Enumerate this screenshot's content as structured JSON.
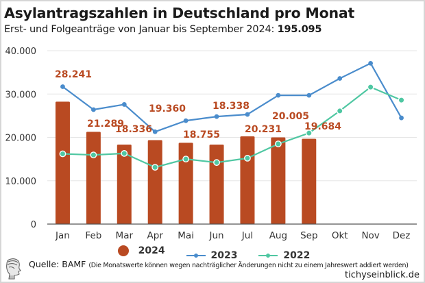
{
  "header": {
    "title": "Asylantragszahlen in Deutschland pro Monat",
    "subtitle_prefix": "Erst- und Folgeanträge von Januar bis September 2024: ",
    "subtitle_total": "195.095"
  },
  "colors": {
    "bars_2024": "#b94a22",
    "line_2023": "#4a8ccc",
    "line_2022": "#4fc7a2",
    "grid": "#e6e6e6",
    "axis": "#555555"
  },
  "chart_data": {
    "type": "bar",
    "title": "Asylantragszahlen in Deutschland pro Monat",
    "subtitle": "Erst- und Folgeanträge von Januar bis September 2024: 195.095",
    "xlabel": "",
    "ylabel": "",
    "ylim": [
      0,
      40000
    ],
    "yticks": [
      0,
      10000,
      20000,
      30000,
      40000
    ],
    "ytick_labels": [
      "0",
      "10.000",
      "20.000",
      "30.000",
      "40.000"
    ],
    "grid": true,
    "legend_position": "bottom-center",
    "categories": [
      "Jan",
      "Feb",
      "Mar",
      "Apr",
      "Mai",
      "Jun",
      "Jul",
      "Aug",
      "Sep",
      "Okt",
      "Nov",
      "Dez"
    ],
    "series": [
      {
        "name": "2024",
        "type": "bar",
        "values": [
          28241,
          21289,
          18336,
          19360,
          18755,
          18338,
          20231,
          20005,
          19684,
          null,
          null,
          null
        ],
        "labels": [
          "28.241",
          "21.289",
          "18.336",
          "19.360",
          "18.755",
          "18.338",
          "20.231",
          "20.005",
          "19.684",
          null,
          null,
          null
        ]
      },
      {
        "name": "2023",
        "type": "line",
        "values": [
          31700,
          26400,
          27600,
          21300,
          23850,
          24800,
          25300,
          29700,
          29700,
          33600,
          37100,
          24500
        ]
      },
      {
        "name": "2022",
        "type": "line",
        "values": [
          16200,
          15950,
          16300,
          13100,
          15000,
          14200,
          15200,
          18500,
          21000,
          26100,
          31600,
          28600
        ]
      }
    ]
  },
  "legend": {
    "items": [
      {
        "label": "2024",
        "marker": "dot"
      },
      {
        "label": "2023",
        "marker": "line"
      },
      {
        "label": "2022",
        "marker": "line"
      }
    ]
  },
  "footer": {
    "source": "Quelle: BAMF",
    "note": "(Die Monatswerte können wegen nachträglicher Änderungen nicht zu einem Jahreswert addiert werden)",
    "brand": "tichyseinblick.de",
    "logo_icon": "classical-head-logo-icon"
  }
}
